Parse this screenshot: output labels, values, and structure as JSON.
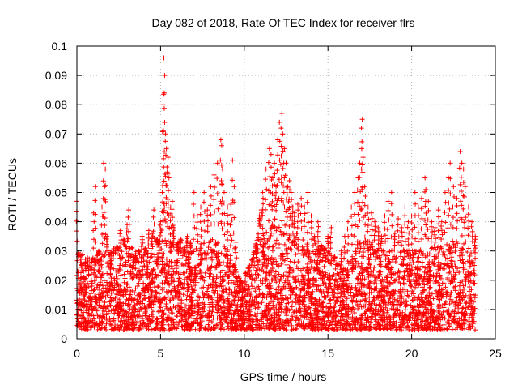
{
  "chart_data": {
    "type": "scatter",
    "title": "Day 082 of 2018, Rate Of TEC Index for receiver flrs",
    "xlabel": "GPS time / hours",
    "ylabel": "ROTI / TECUs",
    "xlim": [
      0,
      25
    ],
    "ylim": [
      0,
      0.1
    ],
    "xticks": [
      0,
      5,
      10,
      15,
      20,
      25
    ],
    "xtick_labels": [
      "0",
      "5",
      "10",
      "15",
      "20",
      "25"
    ],
    "yticks": [
      0,
      0.01,
      0.02,
      0.03,
      0.04,
      0.05,
      0.06,
      0.07,
      0.08,
      0.09,
      0.1
    ],
    "ytick_labels": [
      "0",
      "0.01",
      "0.02",
      "0.03",
      "0.04",
      "0.05",
      "0.06",
      "0.07",
      "0.08",
      "0.09",
      "0.1"
    ],
    "grid": true,
    "marker": "+",
    "color": "#ff0000",
    "series": [
      {
        "points": [
          [
            0.0,
            0.047
          ],
          [
            0.1,
            0.028
          ],
          [
            0.2,
            0.012
          ],
          [
            0.3,
            0.008
          ],
          [
            0.5,
            0.015
          ],
          [
            0.7,
            0.022
          ],
          [
            0.9,
            0.018
          ],
          [
            1.0,
            0.043
          ],
          [
            1.1,
            0.052
          ],
          [
            1.3,
            0.03
          ],
          [
            1.5,
            0.045
          ],
          [
            1.6,
            0.06
          ],
          [
            1.7,
            0.058
          ],
          [
            1.65,
            0.052
          ],
          [
            1.8,
            0.035
          ],
          [
            2.0,
            0.022
          ],
          [
            2.2,
            0.029
          ],
          [
            2.4,
            0.031
          ],
          [
            2.6,
            0.037
          ],
          [
            2.8,
            0.034
          ],
          [
            3.0,
            0.039
          ],
          [
            3.1,
            0.044
          ],
          [
            3.3,
            0.031
          ],
          [
            3.5,
            0.027
          ],
          [
            3.7,
            0.03
          ],
          [
            3.9,
            0.035
          ],
          [
            4.1,
            0.031
          ],
          [
            4.3,
            0.037
          ],
          [
            4.5,
            0.036
          ],
          [
            4.6,
            0.044
          ],
          [
            4.8,
            0.034
          ],
          [
            4.9,
            0.028
          ],
          [
            5.0,
            0.04
          ],
          [
            5.1,
            0.05
          ],
          [
            5.15,
            0.08
          ],
          [
            5.2,
            0.096
          ],
          [
            5.25,
            0.09
          ],
          [
            5.22,
            0.084
          ],
          [
            5.3,
            0.07
          ],
          [
            5.35,
            0.065
          ],
          [
            5.4,
            0.057
          ],
          [
            5.45,
            0.062
          ],
          [
            5.5,
            0.055
          ],
          [
            5.6,
            0.045
          ],
          [
            5.7,
            0.047
          ],
          [
            5.8,
            0.038
          ],
          [
            6.0,
            0.03
          ],
          [
            6.2,
            0.034
          ],
          [
            6.4,
            0.029
          ],
          [
            6.6,
            0.035
          ],
          [
            6.8,
            0.033
          ],
          [
            7.0,
            0.05
          ],
          [
            7.2,
            0.042
          ],
          [
            7.4,
            0.045
          ],
          [
            7.6,
            0.05
          ],
          [
            7.8,
            0.044
          ],
          [
            8.0,
            0.052
          ],
          [
            8.2,
            0.056
          ],
          [
            8.4,
            0.06
          ],
          [
            8.6,
            0.068
          ],
          [
            8.65,
            0.066
          ],
          [
            8.7,
            0.058
          ],
          [
            8.8,
            0.05
          ],
          [
            9.0,
            0.045
          ],
          [
            9.2,
            0.046
          ],
          [
            9.3,
            0.061
          ],
          [
            9.4,
            0.052
          ],
          [
            9.5,
            0.033
          ],
          [
            9.7,
            0.018
          ],
          [
            9.9,
            0.012
          ],
          [
            10.1,
            0.015
          ],
          [
            10.3,
            0.022
          ],
          [
            10.5,
            0.026
          ],
          [
            10.7,
            0.031
          ],
          [
            10.9,
            0.042
          ],
          [
            11.0,
            0.045
          ],
          [
            11.1,
            0.05
          ],
          [
            11.3,
            0.058
          ],
          [
            11.5,
            0.065
          ],
          [
            11.6,
            0.063
          ],
          [
            11.7,
            0.055
          ],
          [
            11.8,
            0.06
          ],
          [
            11.9,
            0.052
          ],
          [
            12.0,
            0.068
          ],
          [
            12.1,
            0.074
          ],
          [
            12.2,
            0.072
          ],
          [
            12.25,
            0.077
          ],
          [
            12.3,
            0.07
          ],
          [
            12.4,
            0.065
          ],
          [
            12.5,
            0.06
          ],
          [
            12.6,
            0.052
          ],
          [
            12.7,
            0.054
          ],
          [
            12.8,
            0.05
          ],
          [
            12.9,
            0.045
          ],
          [
            13.0,
            0.043
          ],
          [
            13.2,
            0.046
          ],
          [
            13.4,
            0.048
          ],
          [
            13.6,
            0.045
          ],
          [
            13.8,
            0.05
          ],
          [
            14.0,
            0.042
          ],
          [
            14.2,
            0.035
          ],
          [
            14.4,
            0.04
          ],
          [
            14.6,
            0.032
          ],
          [
            14.8,
            0.03
          ],
          [
            15.0,
            0.035
          ],
          [
            15.2,
            0.038
          ],
          [
            15.4,
            0.028
          ],
          [
            15.6,
            0.025
          ],
          [
            15.8,
            0.03
          ],
          [
            16.0,
            0.035
          ],
          [
            16.2,
            0.04
          ],
          [
            16.4,
            0.045
          ],
          [
            16.6,
            0.05
          ],
          [
            16.8,
            0.055
          ],
          [
            16.9,
            0.06
          ],
          [
            17.0,
            0.072
          ],
          [
            17.05,
            0.075
          ],
          [
            17.1,
            0.062
          ],
          [
            17.2,
            0.052
          ],
          [
            17.4,
            0.045
          ],
          [
            17.6,
            0.043
          ],
          [
            17.8,
            0.04
          ],
          [
            18.0,
            0.038
          ],
          [
            18.2,
            0.035
          ],
          [
            18.4,
            0.042
          ],
          [
            18.6,
            0.047
          ],
          [
            18.8,
            0.05
          ],
          [
            19.0,
            0.036
          ],
          [
            19.2,
            0.041
          ],
          [
            19.4,
            0.038
          ],
          [
            19.6,
            0.045
          ],
          [
            19.8,
            0.04
          ],
          [
            20.0,
            0.042
          ],
          [
            20.2,
            0.05
          ],
          [
            20.4,
            0.045
          ],
          [
            20.6,
            0.048
          ],
          [
            20.8,
            0.055
          ],
          [
            20.85,
            0.051
          ],
          [
            21.0,
            0.047
          ],
          [
            21.2,
            0.04
          ],
          [
            21.4,
            0.038
          ],
          [
            21.6,
            0.044
          ],
          [
            21.8,
            0.04
          ],
          [
            22.0,
            0.05
          ],
          [
            22.2,
            0.055
          ],
          [
            22.3,
            0.06
          ],
          [
            22.5,
            0.052
          ],
          [
            22.7,
            0.048
          ],
          [
            22.9,
            0.064
          ],
          [
            23.0,
            0.06
          ],
          [
            23.1,
            0.058
          ],
          [
            23.2,
            0.052
          ],
          [
            23.4,
            0.045
          ],
          [
            23.6,
            0.04
          ],
          [
            23.8,
            0.035
          ]
        ]
      }
    ],
    "dense_band": {
      "x_range": [
        0,
        23.8
      ],
      "y_min": 0.003,
      "envelope": [
        [
          0.0,
          0.03
        ],
        [
          1.0,
          0.028
        ],
        [
          2.0,
          0.031
        ],
        [
          3.0,
          0.032
        ],
        [
          4.0,
          0.029
        ],
        [
          5.0,
          0.034
        ],
        [
          6.0,
          0.033
        ],
        [
          7.0,
          0.03
        ],
        [
          8.0,
          0.036
        ],
        [
          9.0,
          0.031
        ],
        [
          9.8,
          0.02
        ],
        [
          10.5,
          0.028
        ],
        [
          11.0,
          0.04
        ],
        [
          12.0,
          0.042
        ],
        [
          13.0,
          0.037
        ],
        [
          14.0,
          0.032
        ],
        [
          15.0,
          0.031
        ],
        [
          15.8,
          0.024
        ],
        [
          16.5,
          0.03
        ],
        [
          17.0,
          0.037
        ],
        [
          18.0,
          0.031
        ],
        [
          19.0,
          0.031
        ],
        [
          20.0,
          0.03
        ],
        [
          21.0,
          0.031
        ],
        [
          22.0,
          0.033
        ],
        [
          23.0,
          0.036
        ],
        [
          23.8,
          0.03
        ]
      ]
    }
  }
}
